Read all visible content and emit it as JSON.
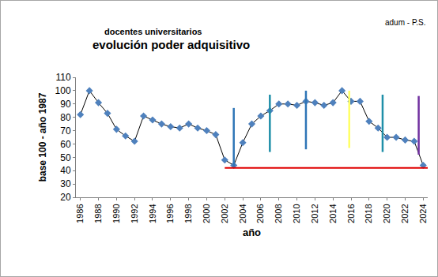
{
  "chart_data": {
    "type": "line",
    "title": "docentes universitarios",
    "subtitle": "evolución poder adquisitivo",
    "annotations": [
      "adum - P.S."
    ],
    "x_label": "año",
    "y_label": "base 100 - año 1987",
    "x": [
      1986,
      1987,
      1988,
      1989,
      1990,
      1991,
      1992,
      1993,
      1994,
      1995,
      1996,
      1997,
      1998,
      1999,
      2000,
      2001,
      2002,
      2003,
      2004,
      2005,
      2006,
      2007,
      2008,
      2009,
      2010,
      2011,
      2012,
      2013,
      2014,
      2015,
      2016,
      2017,
      2018,
      2019,
      2020,
      2021,
      2022,
      2023,
      2024
    ],
    "values": [
      82,
      100,
      91,
      83,
      71,
      66,
      62,
      81,
      78,
      75,
      73,
      72,
      75,
      72,
      70,
      67,
      48,
      44,
      61,
      75,
      81,
      85,
      90,
      90,
      89,
      92,
      91,
      89,
      91,
      100,
      92,
      92,
      77,
      72,
      65,
      65,
      63,
      62,
      44
    ],
    "color": "#000000",
    "marker": "diamond",
    "marker_color": "#4f81bd",
    "xlim": [
      1985.5,
      2024.5
    ],
    "xticks": [
      1986,
      1988,
      1990,
      1992,
      1994,
      1996,
      1998,
      2000,
      2002,
      2004,
      2006,
      2008,
      2010,
      2012,
      2014,
      2016,
      2018,
      2020,
      2022,
      2024
    ],
    "ylim": [
      20,
      110
    ],
    "yticks": [
      20,
      30,
      40,
      50,
      60,
      70,
      80,
      90,
      100,
      110
    ],
    "grid": false,
    "vlines": [
      {
        "x": 2003,
        "y0": 43,
        "y1": 87,
        "color": "#2e75b6"
      },
      {
        "x": 2007,
        "y0": 54,
        "y1": 97,
        "color": "#1f8fa8"
      },
      {
        "x": 2011,
        "y0": 56,
        "y1": 100,
        "color": "#2e75b6"
      },
      {
        "x": 2015.8,
        "y0": 57,
        "y1": 100,
        "color": "#ffff66"
      },
      {
        "x": 2019.5,
        "y0": 54,
        "y1": 97,
        "color": "#1f8fa8"
      },
      {
        "x": 2023.5,
        "y0": 52,
        "y1": 96,
        "color": "#7030a0"
      }
    ],
    "hline": {
      "y": 42,
      "x0": 2002,
      "x1": 2024.5,
      "color": "#e00000"
    }
  }
}
